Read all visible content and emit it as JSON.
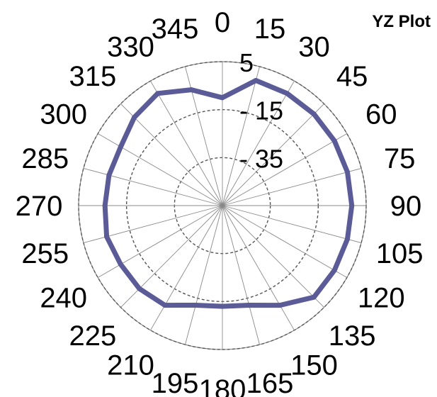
{
  "chart_data": {
    "type": "radar",
    "title": "YZ Plot",
    "r_axis": {
      "min": -55,
      "max": 5,
      "ticks": [
        -35,
        -15,
        5
      ],
      "tick_labels": [
        "- 35",
        "- 15",
        "5"
      ]
    },
    "angle_axis": {
      "step": 15,
      "direction": "clockwise",
      "zero": "top",
      "labels": [
        "0",
        "15",
        "30",
        "45",
        "60",
        "75",
        "90",
        "105",
        "120",
        "135",
        "150",
        "165",
        "180",
        "195",
        "210",
        "225",
        "240",
        "255",
        "270",
        "285",
        "300",
        "315",
        "330",
        "345"
      ]
    },
    "grid": true,
    "series": [
      {
        "color": "#5b5b97",
        "angles": [
          0,
          15,
          30,
          45,
          60,
          75,
          90,
          105,
          120,
          135,
          150,
          165,
          180,
          195,
          210,
          225,
          240,
          255,
          270,
          285,
          300,
          315,
          330,
          345
        ],
        "values": [
          -10,
          -1,
          -1,
          -1,
          -1,
          -1,
          -1,
          -1,
          -1,
          -1,
          -7,
          -12,
          -13,
          -12,
          -7,
          -6,
          -6,
          -5,
          -6,
          -6,
          -6,
          -3,
          -1,
          -5
        ]
      }
    ]
  }
}
